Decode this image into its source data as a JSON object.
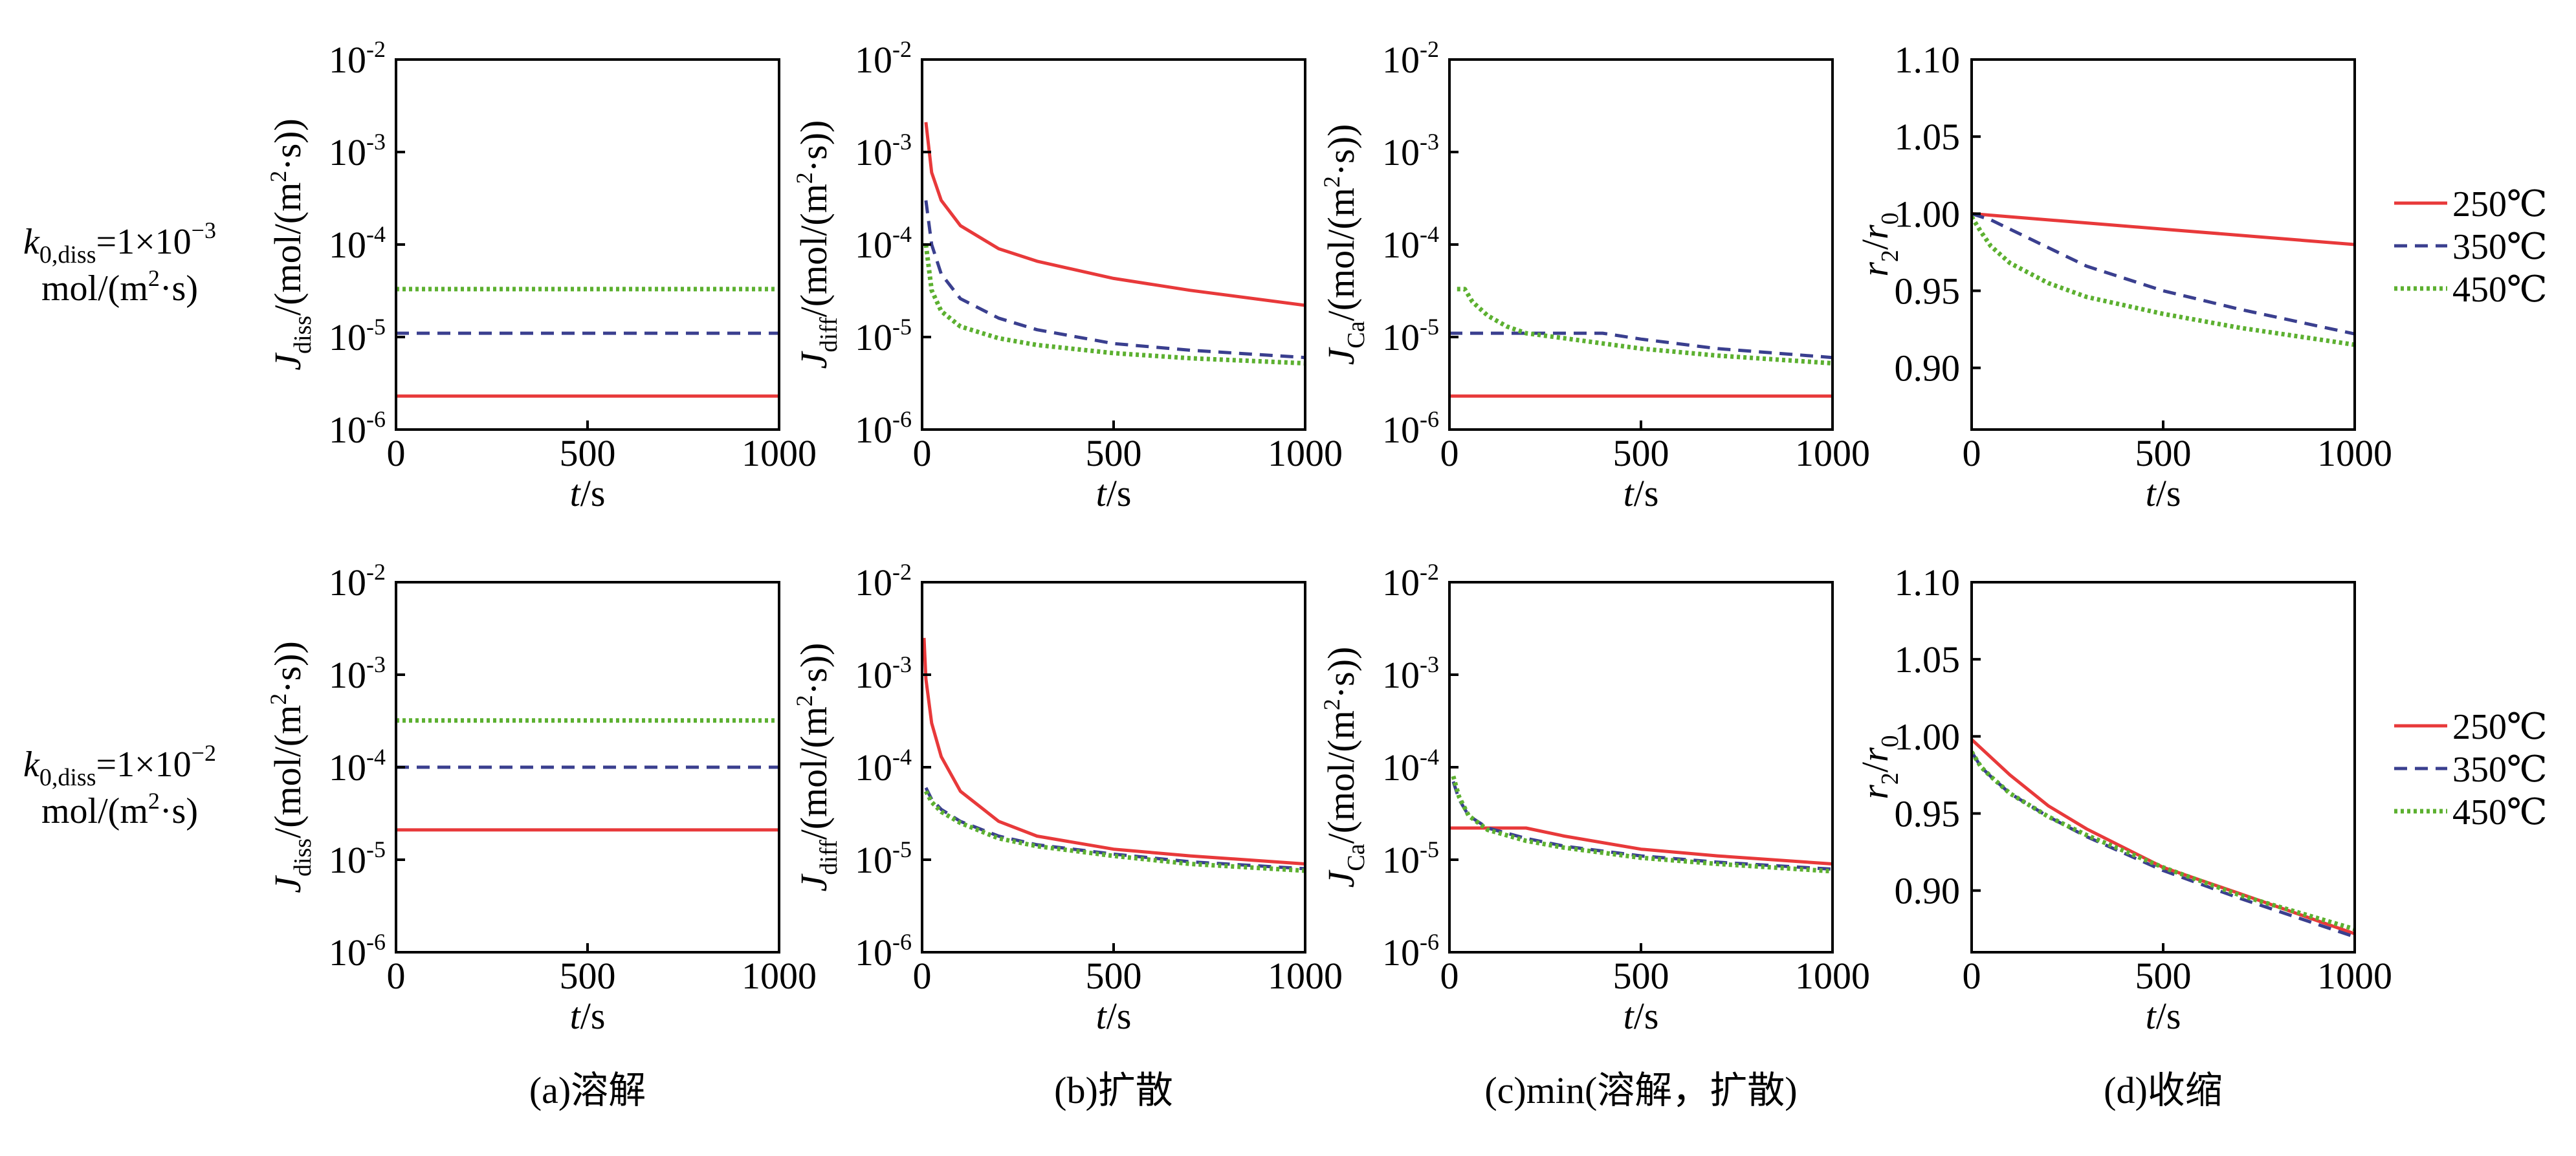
{
  "chart_data": {
    "type": "line",
    "layout": "2x4 grid",
    "x_ticks": [
      "0",
      "500",
      "1000"
    ],
    "x_values": [
      0,
      500,
      1000
    ],
    "xlabel": {
      "italic": "t",
      "rest": "/s"
    },
    "log_ticks": [
      {
        "v": -2,
        "base": "10",
        "exp": "-2"
      },
      {
        "v": -3,
        "base": "10",
        "exp": "-3"
      },
      {
        "v": -4,
        "base": "10",
        "exp": "-4"
      },
      {
        "v": -5,
        "base": "10",
        "exp": "-5"
      },
      {
        "v": -6,
        "base": "10",
        "exp": "-6"
      }
    ],
    "ratio_ticks": [
      "1.10",
      "1.05",
      "1.00",
      "0.95",
      "0.90"
    ],
    "ratio_values": [
      1.1,
      1.05,
      1.0,
      0.95,
      0.9
    ],
    "ratio_ylim": [
      0.86,
      1.1
    ],
    "log_ylim": [
      -6,
      -2
    ],
    "xlim": [
      0,
      1000
    ],
    "ylabels": {
      "diss": {
        "sym": "J",
        "sub": "diss",
        "unit_pre": "/(mol/(m",
        "sup": "2",
        "unit_post": "·s))"
      },
      "diff": {
        "sym": "J",
        "sub": "diff",
        "unit_pre": "/(mol/(m",
        "sup": "2",
        "unit_post": "·s))"
      },
      "ca": {
        "sym": "J",
        "sub": "Ca",
        "unit_pre": "/(mol/(m",
        "sup": "2",
        "unit_post": "·s))"
      },
      "ratio": {
        "sym1": "r",
        "sub1": "2",
        "slash": "/",
        "sym2": "r",
        "sub2": "0"
      }
    },
    "legend": [
      {
        "label": "250℃",
        "color": "#e8393a",
        "dash": "none"
      },
      {
        "label": "350℃",
        "color": "#3a3f8f",
        "dash": "20,12"
      },
      {
        "label": "450℃",
        "color": "#5cb030",
        "dash": "5,5"
      }
    ],
    "row_labels": [
      {
        "k": "k",
        "sub": "0,diss",
        "eq": "=1×10",
        "exp": "−3",
        "unit_pre": "mol/(m",
        "sup": "2",
        "unit_post": "·s)"
      },
      {
        "k": "k",
        "sub": "0,diss",
        "eq": "=1×10",
        "exp": "−2",
        "unit_pre": "mol/(m",
        "sup": "2",
        "unit_post": "·s)"
      }
    ],
    "captions": [
      "(a)溶解",
      "(b)扩散",
      "(c)min(溶解，扩散)",
      "(d)收缩"
    ],
    "panels": [
      {
        "id": "a1",
        "kind": "log",
        "ylabel": "diss",
        "series": [
          {
            "name": "250℃",
            "x": [
              0,
              1000
            ],
            "y": [
              2.3e-06,
              2.3e-06
            ]
          },
          {
            "name": "350℃",
            "x": [
              0,
              1000
            ],
            "y": [
              1.1e-05,
              1.1e-05
            ]
          },
          {
            "name": "450℃",
            "x": [
              0,
              1000
            ],
            "y": [
              3.3e-05,
              3.3e-05
            ]
          }
        ]
      },
      {
        "id": "b1",
        "kind": "log",
        "ylabel": "diff",
        "series": [
          {
            "name": "250℃",
            "x": [
              10,
              25,
              50,
              100,
              200,
              300,
              500,
              700,
              1000
            ],
            "y": [
              0.0021,
              0.0006,
              0.0003,
              0.00016,
              9e-05,
              6.6e-05,
              4.3e-05,
              3.2e-05,
              2.2e-05
            ]
          },
          {
            "name": "350℃",
            "x": [
              10,
              25,
              50,
              100,
              200,
              300,
              500,
              700,
              1000
            ],
            "y": [
              0.0003,
              0.0001,
              4.8e-05,
              2.6e-05,
              1.6e-05,
              1.2e-05,
              8.5e-06,
              7.2e-06,
              6e-06
            ]
          },
          {
            "name": "450℃",
            "x": [
              10,
              25,
              50,
              100,
              200,
              300,
              500,
              700,
              1000
            ],
            "y": [
              0.0001,
              3.2e-05,
              1.9e-05,
              1.3e-05,
              9.7e-06,
              8.2e-06,
              6.7e-06,
              5.9e-06,
              5.2e-06
            ]
          }
        ]
      },
      {
        "id": "c1",
        "kind": "log",
        "ylabel": "ca",
        "series": [
          {
            "name": "250℃",
            "x": [
              0,
              1000
            ],
            "y": [
              2.3e-06,
              2.3e-06
            ]
          },
          {
            "name": "350℃",
            "x": [
              0,
              400,
              500,
              700,
              1000
            ],
            "y": [
              1.1e-05,
              1.1e-05,
              9.5e-06,
              7.5e-06,
              6e-06
            ]
          },
          {
            "name": "450℃",
            "x": [
              20,
              40,
              60,
              100,
              150,
              200,
              300,
              500,
              700,
              1000
            ],
            "y": [
              3.3e-05,
              3.3e-05,
              2.4e-05,
              1.7e-05,
              1.3e-05,
              1.1e-05,
              9.7e-06,
              7.5e-06,
              6.3e-06,
              5.2e-06
            ]
          }
        ]
      },
      {
        "id": "d1",
        "kind": "ratio",
        "ylabel": "ratio",
        "series": [
          {
            "name": "250℃",
            "x": [
              0,
              250,
              500,
              750,
              1000
            ],
            "y": [
              1.0,
              0.995,
              0.99,
              0.985,
              0.98
            ]
          },
          {
            "name": "350℃",
            "x": [
              0,
              50,
              150,
              300,
              500,
              700,
              1000
            ],
            "y": [
              1.0,
              0.996,
              0.984,
              0.966,
              0.95,
              0.938,
              0.922
            ]
          },
          {
            "name": "450℃",
            "x": [
              0,
              25,
              50,
              100,
              200,
              300,
              500,
              700,
              1000
            ],
            "y": [
              0.998,
              0.988,
              0.979,
              0.968,
              0.955,
              0.946,
              0.935,
              0.926,
              0.915
            ]
          }
        ]
      },
      {
        "id": "a2",
        "kind": "log",
        "ylabel": "diss",
        "series": [
          {
            "name": "250℃",
            "x": [
              0,
              1000
            ],
            "y": [
              2.1e-05,
              2.1e-05
            ]
          },
          {
            "name": "350℃",
            "x": [
              0,
              1000
            ],
            "y": [
              0.0001,
              0.0001
            ]
          },
          {
            "name": "450℃",
            "x": [
              0,
              1000
            ],
            "y": [
              0.00032,
              0.00032
            ]
          }
        ]
      },
      {
        "id": "b2",
        "kind": "log",
        "ylabel": "diff",
        "series": [
          {
            "name": "250℃",
            "x": [
              5,
              10,
              25,
              50,
              100,
              200,
              300,
              500,
              700,
              1000
            ],
            "y": [
              0.0025,
              0.0009,
              0.0003,
              0.00013,
              5.5e-05,
              2.6e-05,
              1.8e-05,
              1.3e-05,
              1.1e-05,
              9e-06
            ]
          },
          {
            "name": "350℃",
            "x": [
              10,
              25,
              50,
              100,
              200,
              300,
              500,
              700,
              1000
            ],
            "y": [
              6e-05,
              4.5e-05,
              3.5e-05,
              2.6e-05,
              1.8e-05,
              1.45e-05,
              1.15e-05,
              9.5e-06,
              8e-06
            ]
          },
          {
            "name": "450℃",
            "x": [
              10,
              25,
              50,
              100,
              200,
              300,
              500,
              700,
              1000
            ],
            "y": [
              5.5e-05,
              4.2e-05,
              3.3e-05,
              2.5e-05,
              1.7e-05,
              1.4e-05,
              1.1e-05,
              9e-06,
              7.6e-06
            ]
          }
        ]
      },
      {
        "id": "c2",
        "kind": "log",
        "ylabel": "ca",
        "series": [
          {
            "name": "250℃",
            "x": [
              0,
              200,
              300,
              500,
              700,
              1000
            ],
            "y": [
              2.2e-05,
              2.2e-05,
              1.8e-05,
              1.3e-05,
              1.1e-05,
              9e-06
            ]
          },
          {
            "name": "350℃",
            "x": [
              10,
              25,
              50,
              100,
              200,
              300,
              500,
              700,
              1000
            ],
            "y": [
              7e-05,
              4.5e-05,
              3e-05,
              2.2e-05,
              1.7e-05,
              1.4e-05,
              1.1e-05,
              9.4e-06,
              7.9e-06
            ]
          },
          {
            "name": "450℃",
            "x": [
              10,
              25,
              50,
              100,
              200,
              300,
              500,
              700,
              1000
            ],
            "y": [
              8e-05,
              4.8e-05,
              3e-05,
              2.1e-05,
              1.6e-05,
              1.35e-05,
              1.05e-05,
              9e-06,
              7.5e-06
            ]
          }
        ]
      },
      {
        "id": "d2",
        "kind": "ratio",
        "ylabel": "ratio",
        "series": [
          {
            "name": "250℃",
            "x": [
              0,
              100,
              200,
              300,
              500,
              700,
              1000
            ],
            "y": [
              0.998,
              0.975,
              0.955,
              0.94,
              0.915,
              0.898,
              0.872
            ]
          },
          {
            "name": "350℃",
            "x": [
              0,
              25,
              50,
              100,
              200,
              300,
              500,
              700,
              1000
            ],
            "y": [
              0.99,
              0.98,
              0.974,
              0.963,
              0.948,
              0.935,
              0.913,
              0.895,
              0.87
            ]
          },
          {
            "name": "450℃",
            "x": [
              0,
              25,
              50,
              100,
              200,
              300,
              500,
              700,
              1000
            ],
            "y": [
              0.99,
              0.98,
              0.974,
              0.963,
              0.948,
              0.936,
              0.915,
              0.897,
              0.875
            ]
          }
        ]
      }
    ]
  }
}
